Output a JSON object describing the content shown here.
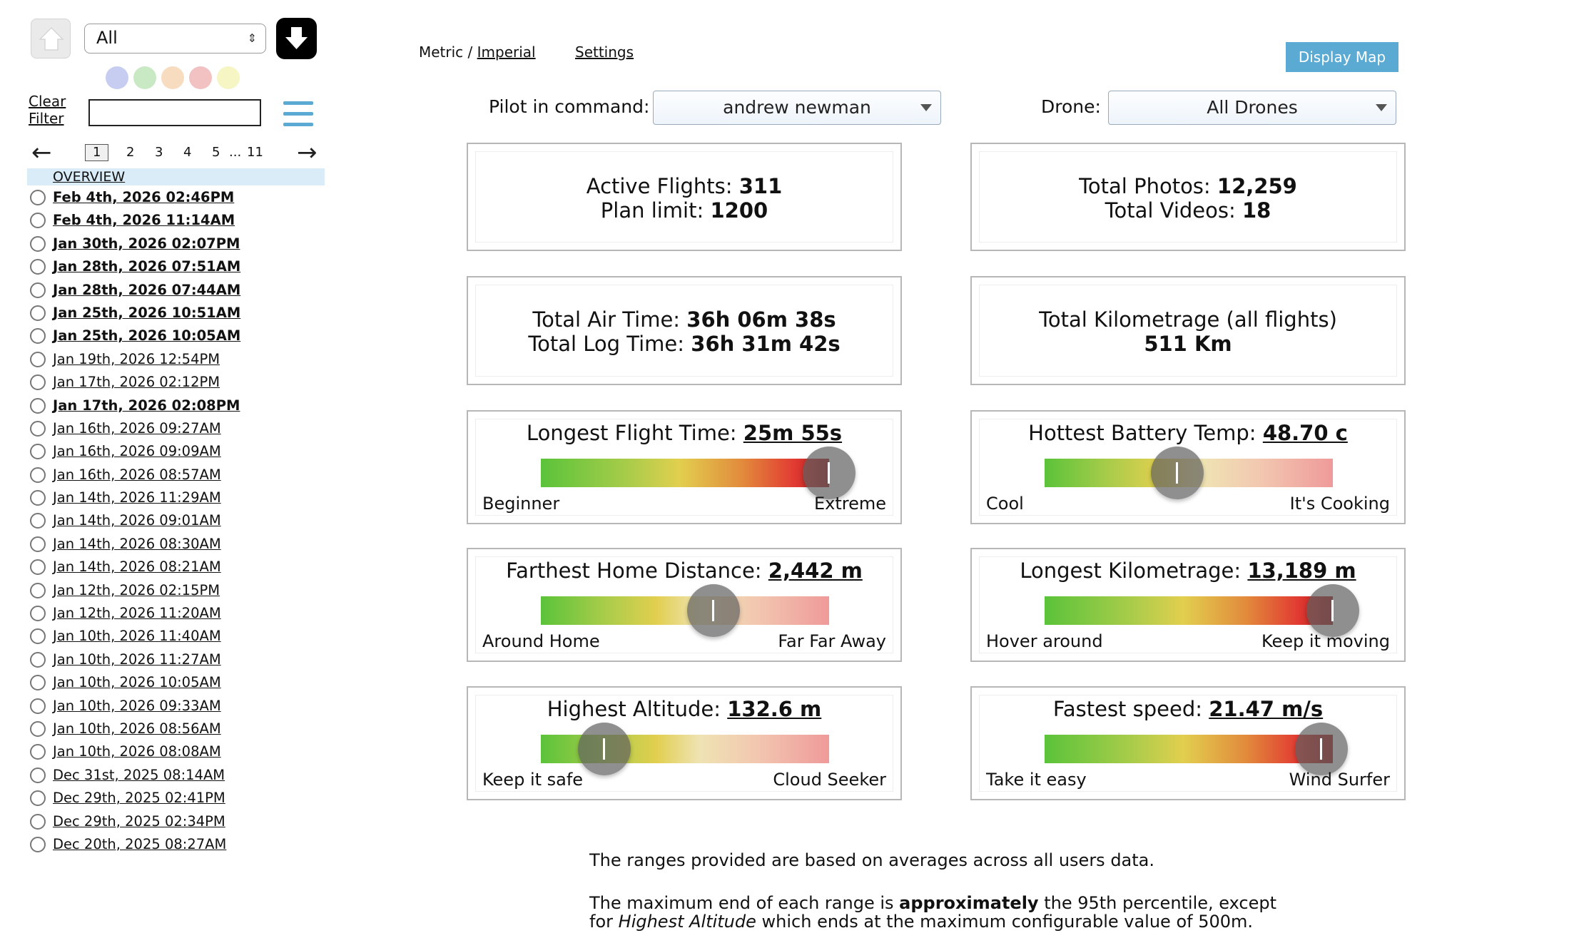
{
  "sidebar": {
    "filter_value": "All",
    "clear_filter_line1": "Clear",
    "clear_filter_line2": "Filter",
    "filter_input_value": "",
    "dot_colors": [
      "#c6cdf0",
      "#c9e8c4",
      "#f7dcc0",
      "#f2c1c1",
      "#f6f5c4"
    ],
    "pages": [
      "1",
      "2",
      "3",
      "4",
      "5",
      "...",
      "11"
    ],
    "overview_label": "OVERVIEW",
    "flights": [
      {
        "label": "Feb 4th, 2026 02:46PM",
        "bold": true
      },
      {
        "label": "Feb 4th, 2026 11:14AM",
        "bold": true
      },
      {
        "label": "Jan 30th, 2026 02:07PM",
        "bold": true
      },
      {
        "label": "Jan 28th, 2026 07:51AM",
        "bold": true
      },
      {
        "label": "Jan 28th, 2026 07:44AM",
        "bold": true
      },
      {
        "label": "Jan 25th, 2026 10:51AM",
        "bold": true
      },
      {
        "label": "Jan 25th, 2026 10:05AM",
        "bold": true
      },
      {
        "label": "Jan 19th, 2026 12:54PM",
        "bold": false
      },
      {
        "label": "Jan 17th, 2026 02:12PM",
        "bold": false
      },
      {
        "label": "Jan 17th, 2026 02:08PM",
        "bold": true
      },
      {
        "label": "Jan 16th, 2026 09:27AM",
        "bold": false
      },
      {
        "label": "Jan 16th, 2026 09:09AM",
        "bold": false
      },
      {
        "label": "Jan 16th, 2026 08:57AM",
        "bold": false
      },
      {
        "label": "Jan 14th, 2026 11:29AM",
        "bold": false
      },
      {
        "label": "Jan 14th, 2026 09:01AM",
        "bold": false
      },
      {
        "label": "Jan 14th, 2026 08:30AM",
        "bold": false
      },
      {
        "label": "Jan 14th, 2026 08:21AM",
        "bold": false
      },
      {
        "label": "Jan 12th, 2026 02:15PM",
        "bold": false
      },
      {
        "label": "Jan 12th, 2026 11:20AM",
        "bold": false
      },
      {
        "label": "Jan 10th, 2026 11:40AM",
        "bold": false
      },
      {
        "label": "Jan 10th, 2026 11:27AM",
        "bold": false
      },
      {
        "label": "Jan 10th, 2026 10:05AM",
        "bold": false
      },
      {
        "label": "Jan 10th, 2026 09:33AM",
        "bold": false
      },
      {
        "label": "Jan 10th, 2026 08:56AM",
        "bold": false
      },
      {
        "label": "Jan 10th, 2026 08:08AM",
        "bold": false
      },
      {
        "label": "Dec 31st, 2025 08:14AM",
        "bold": false
      },
      {
        "label": "Dec 29th, 2025 02:41PM",
        "bold": false
      },
      {
        "label": "Dec 29th, 2025 02:34PM",
        "bold": false
      },
      {
        "label": "Dec 20th, 2025 08:27AM",
        "bold": false
      }
    ]
  },
  "header": {
    "metric_label": "Metric",
    "separator": " / ",
    "imperial_label": "Imperial",
    "settings_label": "Settings",
    "display_map_label": "Display Map",
    "accent_color": "#5aaad4"
  },
  "selectors": {
    "pilot_label": "Pilot in command:",
    "pilot_value": "andrew newman",
    "drone_label": "Drone:",
    "drone_value": "All Drones"
  },
  "stats": {
    "active_flights_label": "Active Flights:",
    "active_flights_value": "311",
    "plan_limit_label": "Plan limit:",
    "plan_limit_value": "1200",
    "total_photos_label": "Total Photos:",
    "total_photos_value": "12,259",
    "total_videos_label": "Total Videos:",
    "total_videos_value": "18",
    "air_time_label": "Total Air Time:",
    "air_time_value": "36h 06m 38s",
    "log_time_label": "Total Log Time:",
    "log_time_value": "36h 31m 42s",
    "kilometrage_label": "Total Kilometrage (all flights)",
    "kilometrage_value": "511 Km"
  },
  "gauges": [
    {
      "title": "Longest Flight Time:",
      "value": "25m 55s",
      "low": "Beginner",
      "high": "Extreme",
      "level": 1.0,
      "gradient": "full"
    },
    {
      "title": "Hottest Battery Temp:",
      "value": "48.70 c",
      "low": "Cool",
      "high": "It's Cooking",
      "level": 0.46,
      "gradient": "partial"
    },
    {
      "title": "Farthest Home Distance:",
      "value": "2,442 m",
      "low": "Around Home",
      "high": "Far Far Away",
      "level": 0.6,
      "gradient": "partial"
    },
    {
      "title": "Longest Kilometrage:",
      "value": "13,189 m",
      "low": "Hover around",
      "high": "Keep it moving",
      "level": 1.0,
      "gradient": "full"
    },
    {
      "title": "Highest Altitude:",
      "value": "132.6 m",
      "low": "Keep it safe",
      "high": "Cloud Seeker",
      "level": 0.22,
      "gradient": "partial"
    },
    {
      "title": "Fastest speed:",
      "value": "21.47 m/s",
      "low": "Take it easy",
      "high": "Wind Surfer",
      "level": 0.96,
      "gradient": "full"
    }
  ],
  "notes": {
    "line1": "The ranges provided are based on averages across all users data.",
    "line2_pre": "The maximum end of each range is ",
    "line2_bold": "approximately",
    "line2_post": " the 95th percentile, except",
    "line3_pre": "for ",
    "line3_italic": "Highest Altitude",
    "line3_post": " which ends at the maximum configurable value of 500m."
  }
}
